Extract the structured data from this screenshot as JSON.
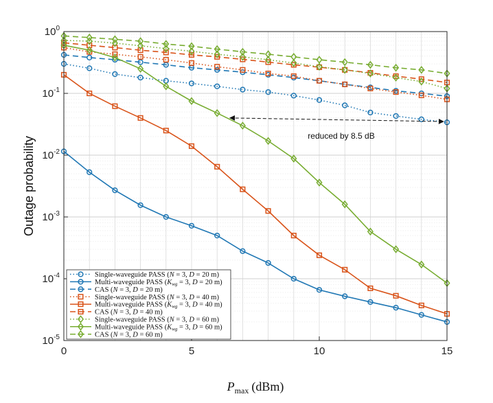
{
  "chart_data": {
    "type": "line",
    "ylabel": "Outage probability",
    "xlabel_var": "P",
    "xlabel_sub": "max",
    "xlabel_unit": "(dBm)",
    "xlim": [
      0,
      15
    ],
    "ylim": [
      1e-05,
      1
    ],
    "yscale": "log",
    "grid": true,
    "legend_placement": "bottom-left",
    "x_ticks": [
      "0",
      "5",
      "10",
      "15"
    ],
    "y_ticks": [
      {
        "base": "10",
        "exp": "-5"
      },
      {
        "base": "10",
        "exp": "-4"
      },
      {
        "base": "10",
        "exp": "-3"
      },
      {
        "base": "10",
        "exp": "-2"
      },
      {
        "base": "10",
        "exp": "-1"
      },
      {
        "base": "10",
        "exp": "0"
      }
    ],
    "x": [
      0,
      1,
      2,
      3,
      4,
      5,
      6,
      7,
      8,
      9,
      10,
      11,
      12,
      13,
      14,
      15
    ],
    "annotation": {
      "text": "reduced by 8.5 dB",
      "from": [
        6.5,
        0.04
      ],
      "to": [
        15,
        0.035
      ]
    },
    "series": [
      {
        "name": "Single-waveguide PASS (N = 3, D = 20 m)",
        "color": "#1f77b4",
        "style": "dotted",
        "marker": "circle",
        "values": [
          0.3,
          0.255,
          0.205,
          0.18,
          0.16,
          0.145,
          0.13,
          0.115,
          0.105,
          0.092,
          0.078,
          0.064,
          0.049,
          0.043,
          0.038,
          0.034
        ]
      },
      {
        "name": "Multi-waveguide PASS (Kwg = 3, D = 20 m)",
        "color": "#1f77b4",
        "style": "solid",
        "marker": "circle",
        "values": [
          0.0115,
          0.0053,
          0.0027,
          0.00155,
          0.001,
          0.00072,
          0.0005,
          0.00028,
          0.00018,
          0.0001,
          6.6e-05,
          5.2e-05,
          4.2e-05,
          3.4e-05,
          2.6e-05,
          2e-05
        ]
      },
      {
        "name": "CAS (N = 3, D = 20 m)",
        "color": "#1f77b4",
        "style": "dashed",
        "marker": "circle",
        "values": [
          0.42,
          0.38,
          0.35,
          0.32,
          0.29,
          0.26,
          0.24,
          0.22,
          0.2,
          0.18,
          0.16,
          0.14,
          0.125,
          0.11,
          0.1,
          0.09
        ]
      },
      {
        "name": "Single-waveguide PASS (N = 3, D = 40 m)",
        "color": "#d95319",
        "style": "dotted",
        "marker": "square",
        "values": [
          0.55,
          0.47,
          0.43,
          0.39,
          0.35,
          0.31,
          0.27,
          0.24,
          0.21,
          0.19,
          0.16,
          0.14,
          0.12,
          0.105,
          0.093,
          0.08
        ]
      },
      {
        "name": "Multi-waveguide PASS (Kwg = 3, D = 40 m)",
        "color": "#d95319",
        "style": "solid",
        "marker": "square",
        "values": [
          0.2,
          0.1,
          0.062,
          0.04,
          0.025,
          0.014,
          0.0065,
          0.0028,
          0.00125,
          0.0005,
          0.00024,
          0.00014,
          7e-05,
          5.3e-05,
          3.7e-05,
          2.7e-05
        ]
      },
      {
        "name": "CAS (N = 3, D = 40 m)",
        "color": "#d95319",
        "style": "dashed",
        "marker": "square",
        "values": [
          0.66,
          0.6,
          0.55,
          0.5,
          0.46,
          0.42,
          0.39,
          0.355,
          0.32,
          0.29,
          0.265,
          0.24,
          0.215,
          0.19,
          0.17,
          0.15
        ]
      },
      {
        "name": "Single-waveguide PASS (N = 3, D = 60 m)",
        "color": "#77ac30",
        "style": "dotted",
        "marker": "diamond",
        "values": [
          0.72,
          0.7,
          0.65,
          0.59,
          0.53,
          0.48,
          0.43,
          0.39,
          0.35,
          0.31,
          0.27,
          0.24,
          0.21,
          0.18,
          0.155,
          0.12
        ]
      },
      {
        "name": "Multi-waveguide PASS (Kwg = 3, D = 60 m)",
        "color": "#77ac30",
        "style": "solid",
        "marker": "diamond",
        "values": [
          0.6,
          0.5,
          0.38,
          0.25,
          0.13,
          0.075,
          0.048,
          0.03,
          0.017,
          0.0088,
          0.0036,
          0.0016,
          0.00058,
          0.0003,
          0.00017,
          8.5e-05
        ]
      },
      {
        "name": "CAS (N = 3, D = 60 m)",
        "color": "#77ac30",
        "style": "dashed",
        "marker": "diamond",
        "values": [
          0.85,
          0.8,
          0.75,
          0.7,
          0.63,
          0.58,
          0.52,
          0.47,
          0.43,
          0.39,
          0.35,
          0.32,
          0.29,
          0.26,
          0.24,
          0.21
        ]
      }
    ]
  },
  "legend_entries": [
    {
      "pre": "Single-waveguide PASS (",
      "p1": "N",
      "m1": " = 3,  ",
      "p2": "D",
      "m2": " = 20",
      "post": " m)"
    },
    {
      "pre": "Multi-waveguide PASS (",
      "p1": "K",
      "sub": "wg",
      "m1": " = 3,  ",
      "p2": "D",
      "m2": " = 20",
      "post": " m)"
    },
    {
      "pre": "CAS (",
      "p1": "N",
      "m1": " = 3,  ",
      "p2": "D",
      "m2": " = 20",
      "post": " m)"
    },
    {
      "pre": "Single-waveguide PASS (",
      "p1": "N",
      "m1": " = 3,  ",
      "p2": "D",
      "m2": " = 40",
      "post": " m)"
    },
    {
      "pre": "Multi-waveguide PASS (",
      "p1": "K",
      "sub": "wg",
      "m1": " = 3,  ",
      "p2": "D",
      "m2": " = 40",
      "post": " m)"
    },
    {
      "pre": "CAS (",
      "p1": "N",
      "m1": " = 3,  ",
      "p2": "D",
      "m2": " = 40",
      "post": " m)"
    },
    {
      "pre": "Single-waveguide PASS (",
      "p1": "N",
      "m1": " = 3,  ",
      "p2": "D",
      "m2": " = 60",
      "post": " m)"
    },
    {
      "pre": "Multi-waveguide PASS (",
      "p1": "K",
      "sub": "wg",
      "m1": " = 3,  ",
      "p2": "D",
      "m2": " = 60",
      "post": " m)"
    },
    {
      "pre": "CAS (",
      "p1": "N",
      "m1": " = 3,  ",
      "p2": "D",
      "m2": " = 60",
      "post": " m)"
    }
  ]
}
